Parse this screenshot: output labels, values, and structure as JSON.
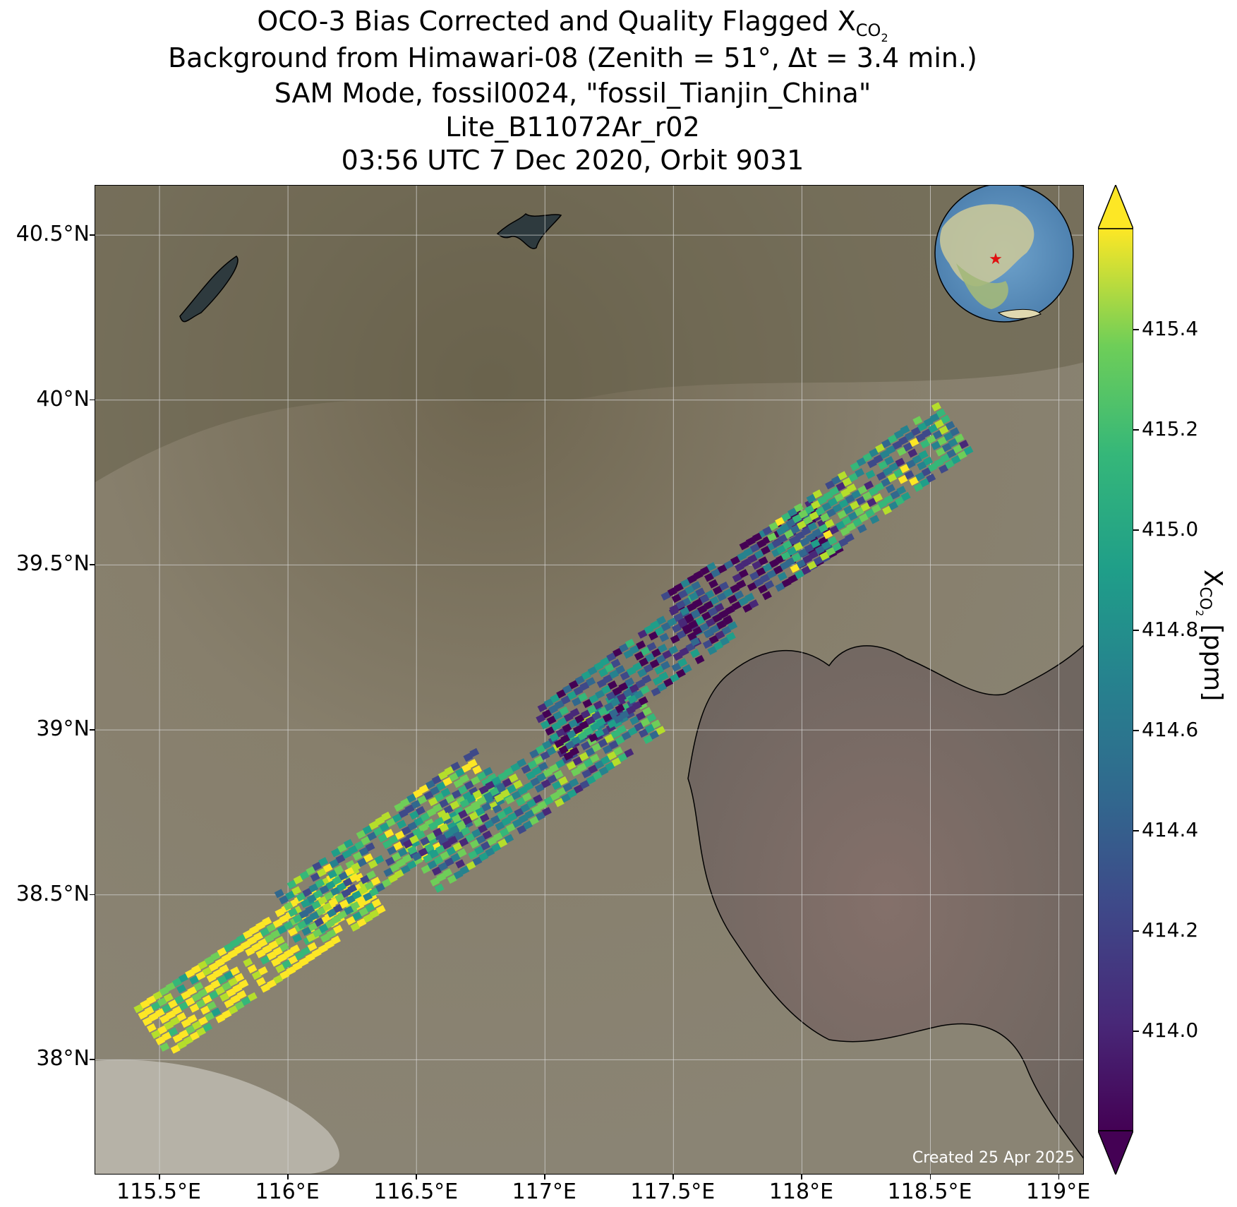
{
  "title": {
    "line1_prefix": "OCO-3 Bias Corrected and Quality Flagged X",
    "line1_sub": "CO",
    "line1_subsub": "2",
    "line2": "Background from Himawari-08 (Zenith = 51°, Δt =  3.4 min.)",
    "line3": "SAM Mode, fossil0024, \"fossil_Tianjin_China\"",
    "line4": "Lite_B11072Ar_r02",
    "line5": "03:56 UTC 7 Dec 2020, Orbit 9031"
  },
  "map": {
    "lon_range": [
      115.25,
      119.1
    ],
    "lat_range": [
      37.65,
      40.65
    ],
    "x_ticks": [
      "115.5°E",
      "116°E",
      "116.5°E",
      "117°E",
      "117.5°E",
      "118°E",
      "118.5°E",
      "119°E"
    ],
    "x_tick_values": [
      115.5,
      116.0,
      116.5,
      117.0,
      117.5,
      118.0,
      118.5,
      119.0
    ],
    "y_ticks": [
      "40.5°N",
      "40°N",
      "39.5°N",
      "39°N",
      "38.5°N",
      "38°N"
    ],
    "y_tick_values": [
      40.5,
      40.0,
      39.5,
      39.0,
      38.5,
      38.0
    ],
    "created": "Created 25 Apr 2025",
    "target_marker": "red-star",
    "inset": "globe-centered-on-asia",
    "colors": {
      "land": "#8a8270",
      "sea": "#7a6a62",
      "grid": "#d8d8d8"
    }
  },
  "colorbar": {
    "label_prefix": "X",
    "label_sub": "CO",
    "label_subsub": "2",
    "label_suffix": " [ppm]",
    "range": [
      413.8,
      415.6
    ],
    "ticks": [
      "415.4",
      "415.2",
      "415.0",
      "414.8",
      "414.6",
      "414.4",
      "414.2",
      "414.0"
    ],
    "tick_values": [
      415.4,
      415.2,
      415.0,
      414.8,
      414.6,
      414.4,
      414.2,
      414.0
    ],
    "colormap": "viridis",
    "extend": "both"
  },
  "chart_data": {
    "type": "heatmap",
    "description_source": "XCO2 swath soundings",
    "range": [
      413.8,
      415.6
    ],
    "swath_segments": [
      {
        "lon_start": 115.45,
        "lat_start": 38.1,
        "lon_end": 116.3,
        "lat_end": 38.55,
        "mean_xco2": 415.5
      },
      {
        "lon_start": 116.0,
        "lat_start": 38.45,
        "lon_end": 116.8,
        "lat_end": 38.9,
        "mean_xco2": 414.9
      },
      {
        "lon_start": 116.5,
        "lat_start": 38.6,
        "lon_end": 117.4,
        "lat_end": 39.1,
        "mean_xco2": 414.7
      },
      {
        "lon_start": 117.0,
        "lat_start": 39.0,
        "lon_end": 117.7,
        "lat_end": 39.4,
        "mean_xco2": 414.3
      },
      {
        "lon_start": 117.5,
        "lat_start": 39.35,
        "lon_end": 118.1,
        "lat_end": 39.65,
        "mean_xco2": 414.0
      },
      {
        "lon_start": 117.9,
        "lat_start": 39.55,
        "lon_end": 118.6,
        "lat_end": 39.95,
        "mean_xco2": 414.8
      }
    ]
  }
}
